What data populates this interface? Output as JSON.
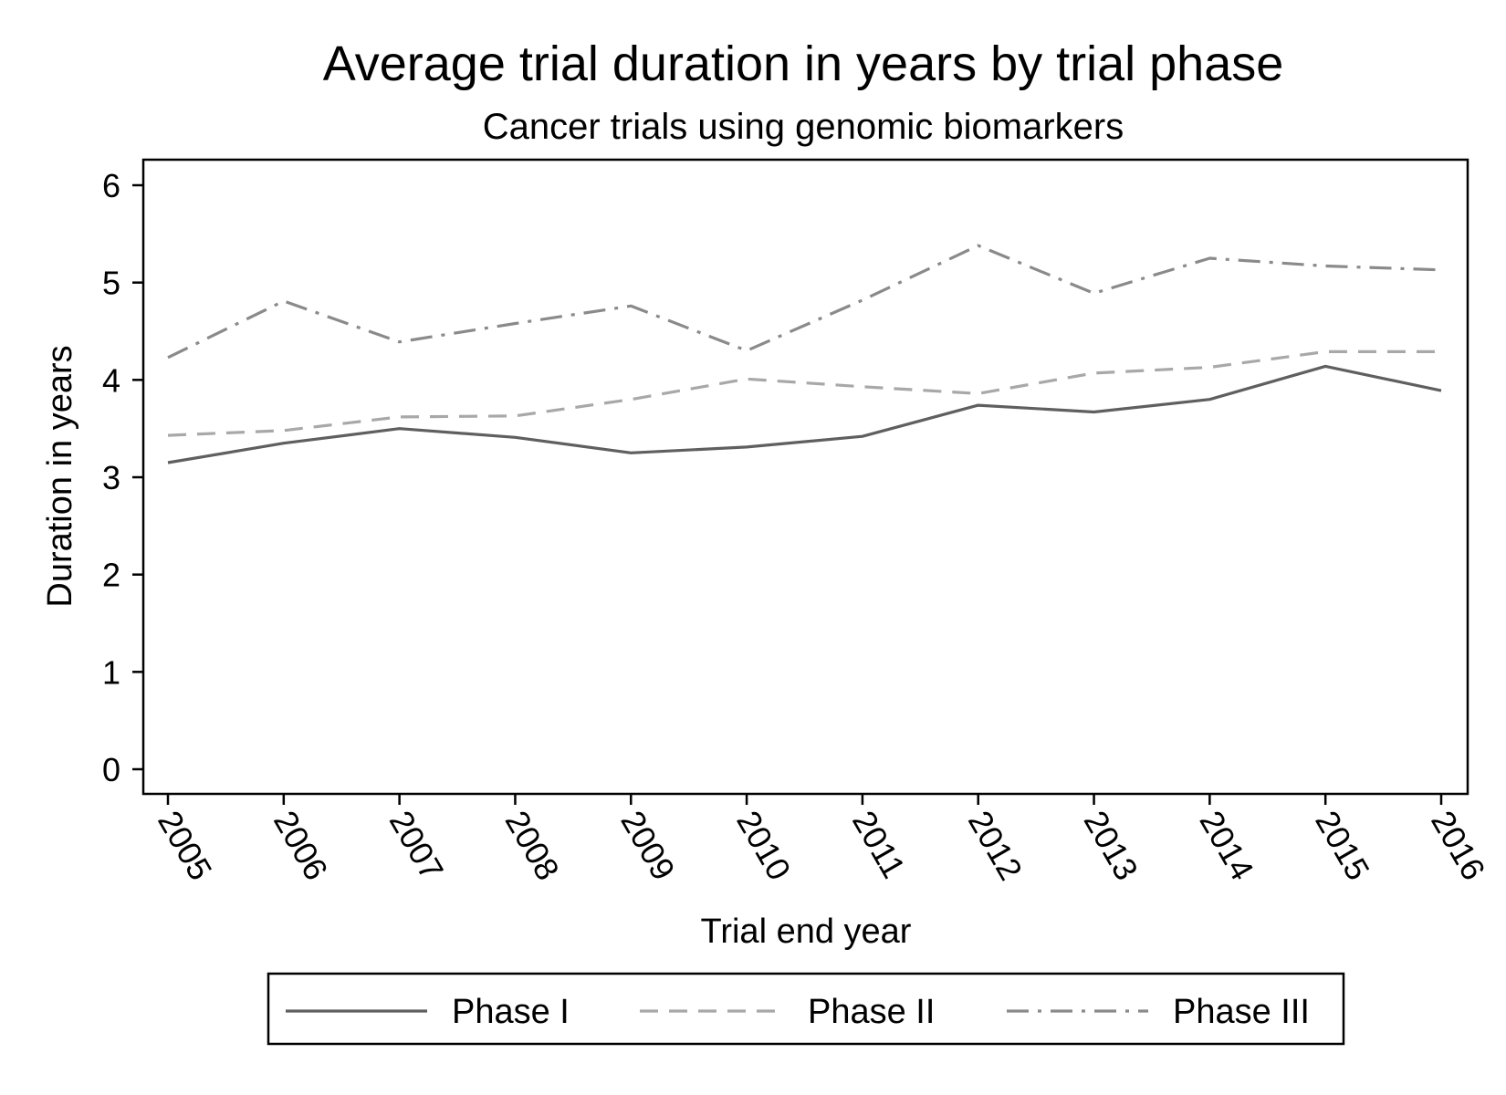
{
  "chart_data": {
    "type": "line",
    "title": "Average trial duration in years by trial phase",
    "subtitle": "Cancer trials using genomic biomarkers",
    "xlabel": "Trial end year",
    "ylabel": "Duration in years",
    "x": [
      "2005",
      "2006",
      "2007",
      "2008",
      "2009",
      "2010",
      "2011",
      "2012",
      "2013",
      "2014",
      "2015",
      "2016"
    ],
    "ylim": [
      0,
      6
    ],
    "yticks": [
      "0",
      "1",
      "2",
      "3",
      "4",
      "5",
      "6"
    ],
    "grid": false,
    "legend_position": "bottom",
    "series": [
      {
        "name": "Phase I",
        "style": "solid",
        "color": "#5f5f5f",
        "values": [
          3.15,
          3.35,
          3.5,
          3.41,
          3.25,
          3.31,
          3.42,
          3.74,
          3.67,
          3.8,
          4.14,
          3.89
        ]
      },
      {
        "name": "Phase II",
        "style": "dashed",
        "color": "#a8a8a8",
        "values": [
          3.43,
          3.48,
          3.62,
          3.63,
          3.8,
          4.01,
          3.93,
          3.86,
          4.07,
          4.13,
          4.29,
          4.29
        ]
      },
      {
        "name": "Phase III",
        "style": "dashdot",
        "color": "#8a8a8a",
        "values": [
          4.23,
          4.81,
          4.39,
          4.58,
          4.76,
          4.3,
          4.82,
          5.38,
          4.89,
          5.25,
          5.17,
          5.13
        ]
      }
    ]
  }
}
